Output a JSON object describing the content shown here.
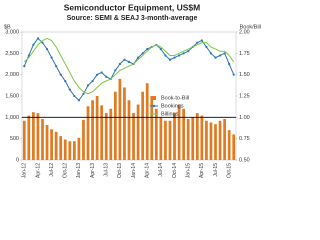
{
  "chart_data": {
    "type": "combo",
    "title": "Semiconductor Equipment, US$M",
    "subtitle": "Source: SEMI & SEAJ 3-month-average",
    "y_label": "$B",
    "y2_label": "Book/Bill",
    "categories": [
      "Jan-12",
      null,
      null,
      "Apr-12",
      null,
      null,
      "Jul-12",
      null,
      null,
      "Oct-12",
      null,
      null,
      "Jan-13",
      null,
      null,
      "Apr-13",
      null,
      null,
      "Jul-13",
      null,
      null,
      "Oct-13",
      null,
      null,
      "Jan-14",
      null,
      null,
      "Apr-14",
      null,
      null,
      "Jul-14",
      null,
      null,
      "Oct-14",
      null,
      null,
      "Jan-15",
      null,
      null,
      "Apr-15",
      null,
      null,
      "Jul-15",
      null,
      null,
      "Oct-15",
      null
    ],
    "series": [
      {
        "name": "Book-to-Bill",
        "kind": "bar",
        "axis": "y2",
        "color": "#e07b22",
        "values": [
          0.96,
          1.02,
          1.06,
          1.05,
          0.98,
          0.91,
          0.86,
          0.83,
          0.78,
          0.74,
          0.72,
          0.72,
          0.76,
          0.97,
          1.13,
          1.2,
          1.25,
          1.14,
          1.05,
          1.1,
          1.3,
          1.45,
          1.35,
          1.2,
          1.05,
          1.15,
          1.3,
          1.4,
          1.25,
          1.1,
          1.0,
          0.96,
          0.96,
          1.05,
          1.15,
          1.1,
          0.98,
          1.0,
          1.05,
          1.02,
          0.96,
          0.94,
          0.92,
          0.96,
          0.98,
          0.85,
          0.8
        ]
      },
      {
        "name": "Bookings",
        "kind": "line",
        "color": "#2e75b6",
        "markers": true,
        "values": [
          2200,
          2450,
          2700,
          2850,
          2750,
          2600,
          2400,
          2200,
          2000,
          1850,
          1650,
          1500,
          1400,
          1550,
          1750,
          1850,
          2000,
          2050,
          1950,
          1900,
          2100,
          2250,
          2350,
          2300,
          2250,
          2400,
          2500,
          2600,
          2650,
          2700,
          2600,
          2450,
          2350,
          2400,
          2450,
          2500,
          2550,
          2650,
          2750,
          2800,
          2650,
          2500,
          2400,
          2450,
          2500,
          2250,
          2000
        ]
      },
      {
        "name": "Billings",
        "kind": "line",
        "color": "#7ac943",
        "markers": false,
        "values": [
          2300,
          2400,
          2550,
          2700,
          2800,
          2850,
          2800,
          2650,
          2450,
          2250,
          2050,
          1850,
          1700,
          1600,
          1550,
          1600,
          1700,
          1800,
          1850,
          1900,
          2000,
          2100,
          2150,
          2200,
          2250,
          2350,
          2450,
          2550,
          2650,
          2700,
          2650,
          2550,
          2450,
          2450,
          2500,
          2550,
          2600,
          2650,
          2700,
          2750,
          2750,
          2650,
          2600,
          2550,
          2550,
          2450,
          2300
        ]
      }
    ],
    "ylim": [
      0,
      3000
    ],
    "yticks": [
      0,
      500,
      {
        "value": 1000,
        "label": "1,000"
      },
      {
        "value": 1500,
        "label": "1,500"
      },
      {
        "value": 2000,
        "label": "2,000"
      },
      {
        "value": 2500,
        "label": "2,500"
      },
      {
        "value": 3000,
        "label": "3,000"
      }
    ],
    "y2lim": [
      0.5,
      2
    ],
    "y2ticks": [
      {
        "value": 0.5,
        "label": "0.50"
      },
      {
        "value": 0.75,
        "label": "0.75"
      },
      {
        "value": 1,
        "label": "1.00"
      },
      {
        "value": 1.25,
        "label": "1.25"
      },
      {
        "value": 1.5,
        "label": "1.50"
      },
      {
        "value": 1.75,
        "label": "1.75"
      },
      {
        "value": 2,
        "label": "2.00"
      }
    ],
    "y2_reference": 1,
    "legend": "right"
  }
}
